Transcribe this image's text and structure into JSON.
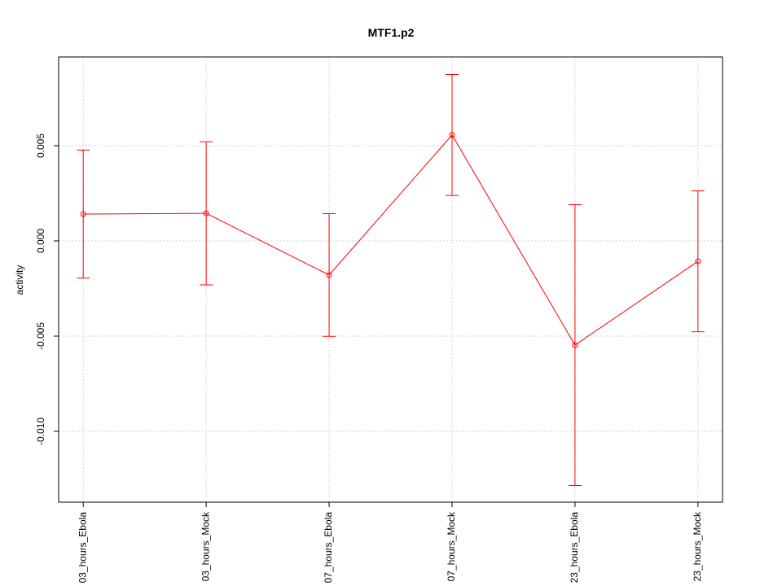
{
  "chart_data": {
    "type": "line",
    "title": "MTF1.p2",
    "ylabel": "activity",
    "categories": [
      "03_hours_Ebola",
      "03_hours_Mock",
      "07_hours_Ebola",
      "07_hours_Mock",
      "23_hours_Ebola",
      "23_hours_Mock"
    ],
    "values": [
      0.00141,
      0.00145,
      -0.00179,
      0.00556,
      -0.00547,
      -0.00107
    ],
    "errors": [
      0.00336,
      0.00376,
      0.00322,
      0.00318,
      0.00737,
      0.0037
    ],
    "color": "#ff0000",
    "ylim": [
      -0.013718,
      0.009658
    ],
    "yticks": [
      {
        "value": -0.01,
        "label": "-0.010"
      },
      -0.005,
      {
        "value": 0,
        "label": "0.000"
      },
      0.005
    ],
    "grid": true
  }
}
